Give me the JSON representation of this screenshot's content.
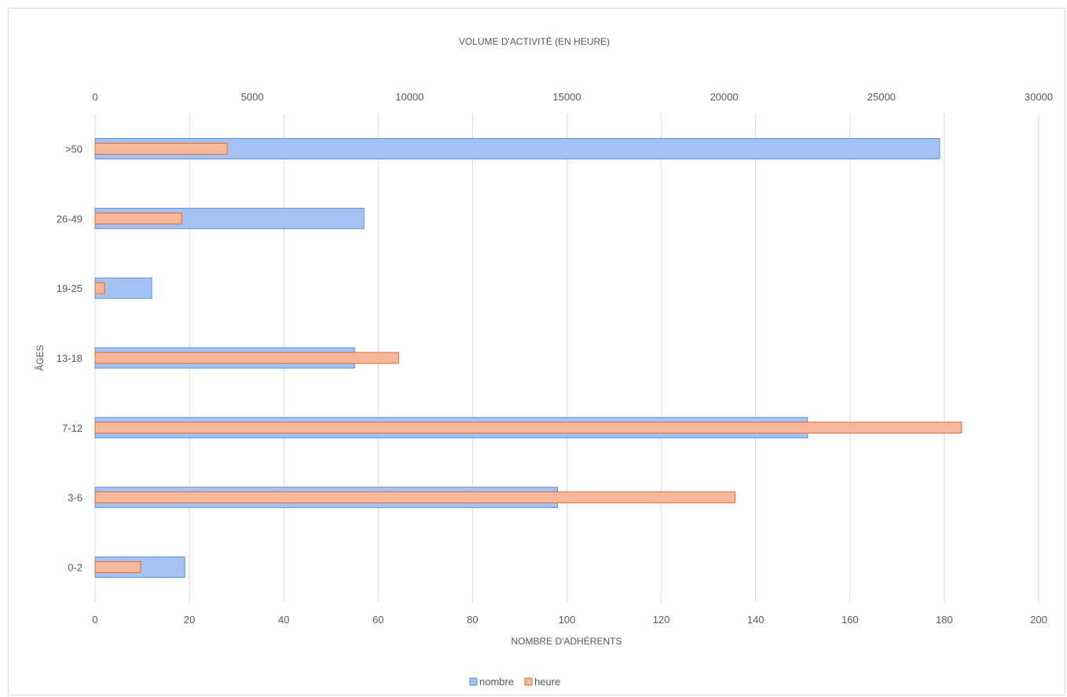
{
  "chart_data": {
    "type": "bar",
    "orientation": "horizontal",
    "top_axis_title": "VOLUME D'ACTIVITÉ (EN HEURE)",
    "bottom_axis_title": "NOMBRE D'ADHÉRENTS",
    "y_axis_title": "ÂGES",
    "categories": [
      "0-2",
      "3-6",
      "7-12",
      "13-18",
      "19-25",
      "26-49",
      ">50"
    ],
    "bottom_axis": {
      "min": 0,
      "max": 200,
      "step": 20,
      "ticks": [
        "0",
        "20",
        "40",
        "60",
        "80",
        "100",
        "120",
        "140",
        "160",
        "180",
        "200"
      ]
    },
    "top_axis": {
      "min": 0,
      "max": 30000,
      "step": 5000,
      "ticks": [
        "0",
        "5000",
        "10000",
        "15000",
        "20000",
        "25000",
        "30000"
      ]
    },
    "series": [
      {
        "name": "nombre",
        "axis": "bottom",
        "color": "#a4c2f4",
        "border": "#5b8fd1",
        "values": [
          19,
          98,
          151,
          55,
          12,
          57,
          179
        ]
      },
      {
        "name": "heure",
        "axis": "top",
        "color": "#f8b79b",
        "border": "#e06c30",
        "values": [
          1450,
          20350,
          27550,
          9650,
          300,
          2750,
          4200
        ]
      }
    ],
    "grid": "vertical",
    "legend_position": "bottom"
  }
}
